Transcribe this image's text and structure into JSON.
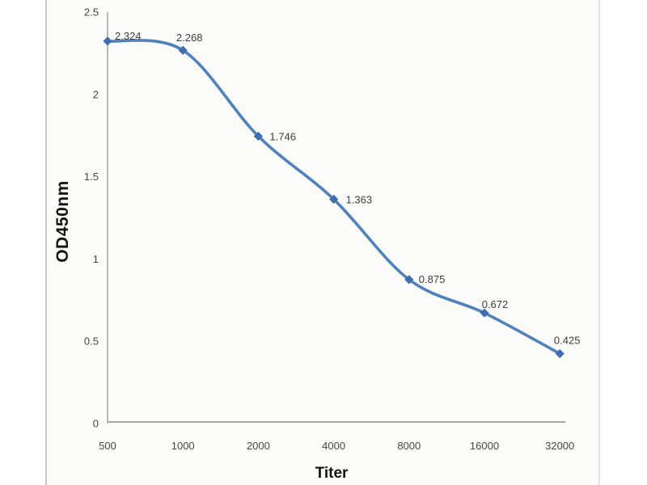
{
  "figure": {
    "y_axis_title": "OD450nm",
    "x_axis_title": "Titer"
  },
  "chart_data": {
    "type": "line",
    "title": "",
    "xlabel": "Titer",
    "ylabel": "OD450nm",
    "categories": [
      "500",
      "1000",
      "2000",
      "4000",
      "8000",
      "16000",
      "32000"
    ],
    "series": [
      {
        "name": "OD450nm",
        "values": [
          2.324,
          2.268,
          1.746,
          1.363,
          0.875,
          0.672,
          0.425
        ]
      }
    ],
    "point_labels": [
      "2.324",
      "2.268",
      "1.746",
      "1.363",
      "0.875",
      "0.672",
      "0.425"
    ],
    "y_ticks": [
      0,
      0.5,
      1,
      1.5,
      2,
      2.5
    ],
    "y_tick_labels": [
      "0",
      "0.5",
      "1",
      "1.5",
      "2",
      "2.5"
    ],
    "ylim": [
      0,
      2.5
    ],
    "grid": false,
    "legend": "none",
    "smooth": true,
    "marker": "diamond",
    "colors": {
      "line": "#4f81bd",
      "marker": "#3e6db0",
      "axis": "#a8a8a8",
      "tick_text": "#454545",
      "label_text": "#3d3d3d"
    }
  }
}
